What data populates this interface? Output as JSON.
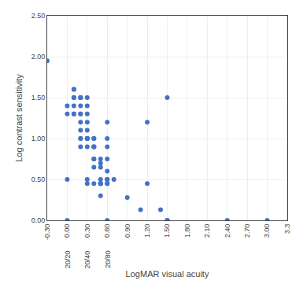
{
  "chart_data": {
    "type": "scatter",
    "x": [
      -0.3,
      0.0,
      0.0,
      0.0,
      0.0,
      0.1,
      0.1,
      0.1,
      0.1,
      0.1,
      0.1,
      0.1,
      0.2,
      0.2,
      0.2,
      0.2,
      0.2,
      0.2,
      0.2,
      0.2,
      0.2,
      0.2,
      0.2,
      0.3,
      0.3,
      0.3,
      0.3,
      0.3,
      0.3,
      0.3,
      0.3,
      0.3,
      0.3,
      0.3,
      0.3,
      0.4,
      0.4,
      0.4,
      0.4,
      0.4,
      0.4,
      0.4,
      0.4,
      0.4,
      0.5,
      0.5,
      0.5,
      0.5,
      0.5,
      0.5,
      0.5,
      0.5,
      0.5,
      0.6,
      0.6,
      0.6,
      0.6,
      0.6,
      0.6,
      0.6,
      0.6,
      0.6,
      0.6,
      0.6,
      0.7,
      0.9,
      1.1,
      1.2,
      1.2,
      1.4,
      1.5,
      1.5,
      1.5,
      2.4,
      3.0
    ],
    "values": [
      1.95,
      0.0,
      0.5,
      1.3,
      1.4,
      1.3,
      1.4,
      1.5,
      1.5,
      1.6,
      1.6,
      1.3,
      1.0,
      1.1,
      1.2,
      1.3,
      1.3,
      1.4,
      1.5,
      1.5,
      1.5,
      1.0,
      0.9,
      0.9,
      1.0,
      1.0,
      1.0,
      1.0,
      1.1,
      1.2,
      1.3,
      1.4,
      1.5,
      0.5,
      0.45,
      0.9,
      0.9,
      0.9,
      1.0,
      1.0,
      0.75,
      0.75,
      0.65,
      0.45,
      0.5,
      0.65,
      0.7,
      0.75,
      0.45,
      0.45,
      0.45,
      0.45,
      0.3,
      0.5,
      0.5,
      0.6,
      0.75,
      0.9,
      1.0,
      1.2,
      0.5,
      0.45,
      0.45,
      0.0,
      0.5,
      0.28,
      0.13,
      1.2,
      0.45,
      0.13,
      0.0,
      0.0,
      1.5,
      0.0,
      0.0
    ],
    "color": "#4472c4",
    "xlabel": "LogMAR visual acuity",
    "ylabel": "Log contrast sensitivity",
    "xlim": [
      -0.3,
      3.3
    ],
    "ylim": [
      0.0,
      2.5
    ],
    "xticks": [
      {
        "value": -0.3,
        "label": "-0.30"
      },
      {
        "value": 0.0,
        "label": "0.00"
      },
      {
        "value": 0.3,
        "label": "0.30"
      },
      {
        "value": 0.6,
        "label": "0.60"
      },
      {
        "value": 0.9,
        "label": "0.90"
      },
      {
        "value": 1.2,
        "label": "1.20"
      },
      {
        "value": 1.5,
        "label": "1.50"
      },
      {
        "value": 1.8,
        "label": "1.80"
      },
      {
        "value": 2.1,
        "label": "2.10"
      },
      {
        "value": 2.4,
        "label": "2.40"
      },
      {
        "value": 2.7,
        "label": "2.70"
      },
      {
        "value": 3.0,
        "label": "3.00"
      },
      3.3
    ],
    "yticks": [
      {
        "value": 0.0,
        "label": "0.00"
      },
      {
        "value": 0.5,
        "label": "0.50"
      },
      {
        "value": 1.0,
        "label": "1.00"
      },
      {
        "value": 1.5,
        "label": "1.50"
      },
      {
        "value": 2.0,
        "label": "2.00"
      },
      {
        "value": 2.5,
        "label": "2.50"
      }
    ],
    "annotations": [
      {
        "x": 0.0,
        "text": "20/20"
      },
      {
        "x": 0.3,
        "text": "20/40"
      },
      {
        "x": 0.6,
        "text": "20/80"
      }
    ],
    "grid": true
  }
}
